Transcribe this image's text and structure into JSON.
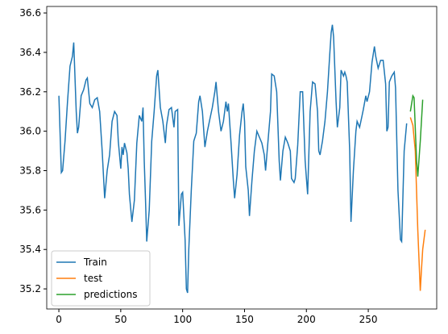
{
  "chart_data": {
    "type": "line",
    "xlim": [
      -9.8,
      305.3
    ],
    "xticks": [
      0,
      50,
      100,
      150,
      200,
      250
    ],
    "ylim": [
      35.098,
      36.633
    ],
    "yticks": [
      {
        "value": 35.2,
        "label": "35.2"
      },
      {
        "value": 35.4,
        "label": "35.4"
      },
      {
        "value": 35.6,
        "label": "35.6"
      },
      {
        "value": 35.8,
        "label": "35.8"
      },
      {
        "value": 36.0,
        "label": "36.0"
      },
      {
        "value": 36.2,
        "label": "36.2"
      },
      {
        "value": 36.4,
        "label": "36.4"
      },
      {
        "value": 36.6,
        "label": "36.6"
      }
    ],
    "legend": "lower left",
    "series": [
      {
        "name": "Train",
        "color": "#1f77b4",
        "x": [
          0,
          2,
          3,
          5,
          7,
          9,
          11,
          12,
          14,
          15,
          16,
          18,
          20,
          22,
          23,
          25,
          27,
          29,
          31,
          33,
          35,
          37,
          39,
          41,
          43,
          45,
          47,
          48,
          50,
          51,
          52,
          53,
          55,
          56,
          57,
          59,
          61,
          63,
          65,
          67,
          68,
          69,
          70,
          71,
          73,
          75,
          77,
          79,
          80,
          82,
          84,
          86,
          87,
          89,
          91,
          93,
          94,
          96,
          97,
          99,
          100,
          102,
          103,
          104,
          105,
          107,
          109,
          111,
          113,
          114,
          116,
          118,
          120,
          122,
          124,
          126,
          127,
          129,
          131,
          133,
          135,
          136,
          137,
          139,
          141,
          142,
          144,
          146,
          148,
          149,
          150,
          151,
          153,
          154,
          156,
          158,
          160,
          162,
          164,
          166,
          167,
          169,
          171,
          172,
          174,
          176,
          178,
          179,
          181,
          183,
          185,
          187,
          188,
          190,
          191,
          193,
          195,
          197,
          199,
          200,
          201,
          203,
          205,
          207,
          209,
          210,
          211,
          213,
          215,
          217,
          219,
          220,
          221,
          222,
          224,
          225,
          227,
          228,
          230,
          231,
          232,
          233,
          235,
          236,
          238,
          240,
          241,
          243,
          245,
          246,
          248,
          249,
          251,
          253,
          255,
          256,
          258,
          260,
          262,
          264,
          265,
          266,
          267,
          269,
          271,
          272,
          274,
          276,
          277,
          279,
          281
        ],
        "values": [
          36.18,
          35.79,
          35.8,
          35.95,
          36.15,
          36.33,
          36.38,
          36.45,
          36.1,
          35.99,
          36.02,
          36.18,
          36.21,
          36.26,
          36.27,
          36.14,
          36.12,
          36.16,
          36.17,
          36.1,
          35.9,
          35.66,
          35.8,
          35.88,
          36.05,
          36.1,
          36.08,
          35.95,
          35.81,
          35.92,
          35.88,
          35.94,
          35.89,
          35.81,
          35.68,
          35.54,
          35.65,
          35.94,
          36.08,
          36.05,
          36.12,
          35.85,
          35.65,
          35.44,
          35.6,
          35.95,
          36.1,
          36.28,
          36.31,
          36.12,
          36.05,
          35.94,
          36.03,
          36.11,
          36.12,
          36.02,
          36.1,
          36.11,
          35.52,
          35.68,
          35.69,
          35.45,
          35.2,
          35.18,
          35.4,
          35.7,
          35.95,
          35.99,
          36.15,
          36.18,
          36.1,
          35.92,
          36.0,
          36.06,
          36.12,
          36.2,
          36.25,
          36.1,
          36.0,
          36.05,
          36.15,
          36.1,
          36.14,
          35.95,
          35.75,
          35.66,
          35.78,
          35.98,
          36.1,
          36.14,
          36.05,
          35.82,
          35.7,
          35.57,
          35.75,
          35.9,
          36.0,
          35.97,
          35.94,
          35.88,
          35.8,
          35.95,
          36.1,
          36.29,
          36.28,
          36.2,
          35.85,
          35.75,
          35.9,
          35.97,
          35.94,
          35.9,
          35.76,
          35.74,
          35.76,
          35.93,
          36.2,
          36.2,
          35.85,
          35.76,
          35.68,
          36.1,
          36.25,
          36.24,
          36.1,
          35.9,
          35.88,
          35.95,
          36.05,
          36.2,
          36.4,
          36.5,
          36.54,
          36.48,
          36.15,
          36.02,
          36.12,
          36.31,
          36.28,
          36.3,
          36.28,
          36.25,
          35.9,
          35.54,
          35.8,
          36.0,
          36.05,
          36.02,
          36.08,
          36.11,
          36.18,
          36.15,
          36.2,
          36.35,
          36.43,
          36.38,
          36.32,
          36.36,
          36.36,
          36.24,
          36.0,
          36.02,
          36.25,
          36.28,
          36.3,
          36.22,
          35.7,
          35.45,
          35.44,
          35.9,
          36.04
        ]
      },
      {
        "name": "test",
        "color": "#ff7f0e",
        "x": [
          284,
          286,
          288,
          290,
          292,
          293,
          294,
          296
        ],
        "values": [
          36.07,
          36.03,
          35.9,
          35.5,
          35.19,
          35.3,
          35.4,
          35.5
        ]
      },
      {
        "name": "predictions",
        "color": "#2ca02c",
        "x": [
          284,
          286,
          287,
          289,
          290,
          292,
          294
        ],
        "values": [
          36.1,
          36.18,
          36.17,
          35.85,
          35.77,
          35.95,
          36.16
        ]
      }
    ]
  }
}
